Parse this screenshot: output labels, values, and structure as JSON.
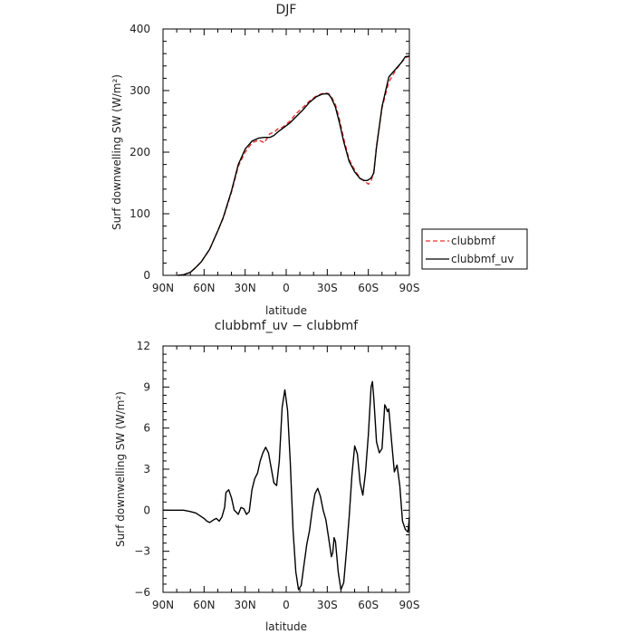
{
  "chart_data": [
    {
      "type": "line",
      "title": "DJF",
      "xlabel": "latitude",
      "ylabel": "Surf downwelling SW (W/m²)",
      "xlim": [
        90,
        -90
      ],
      "ylim": [
        0,
        400
      ],
      "xticks": [
        90,
        60,
        30,
        0,
        -30,
        -60,
        -90
      ],
      "xtick_labels": [
        "90N",
        "60N",
        "30N",
        "0",
        "30S",
        "60S",
        "90S"
      ],
      "yticks": [
        0,
        100,
        200,
        300,
        400
      ],
      "ytick_labels": [
        "0",
        "100",
        "200",
        "300",
        "400"
      ],
      "legend": {
        "position": "right"
      },
      "series": [
        {
          "name": "clubbmf",
          "color": "#e8302a",
          "dash": "dashed",
          "x": [
            79,
            75,
            70,
            66,
            62,
            56,
            50,
            46,
            40,
            35,
            30,
            25,
            20,
            16,
            12,
            9,
            6,
            3,
            0,
            -3,
            -7,
            -12,
            -17,
            -22,
            -26,
            -29,
            -31,
            -33,
            -36,
            -39,
            -42,
            -46,
            -50,
            -54,
            -57,
            -59,
            -60,
            -62,
            -64,
            -66,
            -70,
            -75,
            -80,
            -84,
            -87,
            -90
          ],
          "y": [
            0,
            1,
            5,
            13,
            22,
            42,
            72,
            93,
            135,
            177,
            200,
            215,
            220,
            215,
            230,
            232,
            238,
            240,
            245,
            251,
            262,
            272,
            283,
            291,
            295,
            296,
            295,
            290,
            277,
            253,
            222,
            188,
            171,
            158,
            153,
            150,
            148,
            153,
            168,
            210,
            272,
            314,
            333,
            345,
            353,
            356
          ]
        },
        {
          "name": "clubbmf_uv",
          "color": "#000000",
          "dash": "solid",
          "x": [
            79,
            75,
            70,
            66,
            62,
            56,
            50,
            46,
            40,
            35,
            30,
            25,
            20,
            16,
            12,
            9,
            6,
            3,
            0,
            -3,
            -7,
            -12,
            -17,
            -22,
            -26,
            -29,
            -31,
            -33,
            -36,
            -39,
            -42,
            -46,
            -50,
            -54,
            -57,
            -59,
            -60,
            -62,
            -64,
            -66,
            -70,
            -75,
            -80,
            -84,
            -87,
            -90
          ],
          "y": [
            0,
            1,
            5,
            13,
            22,
            42,
            72,
            94,
            137,
            180,
            205,
            218,
            223,
            224,
            224,
            227,
            233,
            238,
            243,
            248,
            257,
            268,
            281,
            290,
            294,
            295,
            294,
            288,
            273,
            247,
            217,
            185,
            168,
            157,
            154,
            154,
            155,
            158,
            166,
            208,
            274,
            322,
            335,
            345,
            355,
            356
          ]
        }
      ]
    },
    {
      "type": "line",
      "title": "clubbmf_uv − clubbmf",
      "xlabel": "latitude",
      "ylabel": "Surf downwelling SW (W/m²)",
      "xlim": [
        90,
        -90
      ],
      "ylim": [
        -6,
        12
      ],
      "xticks": [
        90,
        60,
        30,
        0,
        -30,
        -60,
        -90
      ],
      "xtick_labels": [
        "90N",
        "60N",
        "30N",
        "0",
        "30S",
        "60S",
        "90S"
      ],
      "yticks": [
        -6,
        -3,
        0,
        3,
        6,
        9,
        12
      ],
      "ytick_labels": [
        "−6",
        "−3",
        "0",
        "3",
        "6",
        "9",
        "12"
      ],
      "series": [
        {
          "color": "#000000",
          "dash": "solid",
          "x": [
            90,
            75,
            70,
            66,
            63,
            60,
            58,
            56,
            53,
            51,
            49,
            47,
            45,
            44,
            42,
            40,
            38,
            37,
            35,
            33,
            31,
            29,
            27,
            25,
            23,
            21,
            19,
            17,
            15,
            13,
            11,
            9,
            7,
            5,
            3,
            1,
            -1,
            -3,
            -5,
            -7,
            -9,
            -11,
            -13,
            -15,
            -17,
            -19,
            -21,
            -23,
            -25,
            -27,
            -29,
            -31,
            -33,
            -34,
            -35,
            -36,
            -38,
            -40,
            -42,
            -44,
            -46,
            -48,
            -50,
            -52,
            -54,
            -56,
            -58,
            -60,
            -62,
            -63,
            -64,
            -66,
            -68,
            -70,
            -72,
            -73,
            -74,
            -75,
            -77,
            -79,
            -81,
            -83,
            -85,
            -87,
            -89,
            -90
          ],
          "y": [
            0,
            0,
            -0.1,
            -0.2,
            -0.4,
            -0.6,
            -0.8,
            -0.9,
            -0.7,
            -0.6,
            -0.8,
            -0.5,
            0.2,
            1.3,
            1.5,
            0.9,
            0,
            -0.1,
            -0.3,
            0.2,
            0.1,
            -0.3,
            -0.1,
            1.5,
            2.3,
            2.7,
            3.6,
            4.2,
            4.6,
            4.2,
            3.1,
            2,
            1.8,
            3.6,
            7.5,
            8.8,
            7.3,
            3.5,
            -1.5,
            -4.5,
            -5.8,
            -5.5,
            -4,
            -2.5,
            -1.5,
            0,
            1.2,
            1.6,
            1,
            0,
            -0.7,
            -2,
            -3.4,
            -3.1,
            -2,
            -2.3,
            -4.5,
            -5.8,
            -5.3,
            -3,
            -0.5,
            2.5,
            4.7,
            4.1,
            2,
            1.1,
            2.8,
            5.5,
            9,
            9.4,
            8.2,
            5,
            4.2,
            4.5,
            7.7,
            7.5,
            7.2,
            7.4,
            5,
            2.8,
            3.3,
            1.8,
            -0.8,
            -1.4,
            -1.6,
            -0.5
          ]
        }
      ]
    }
  ]
}
